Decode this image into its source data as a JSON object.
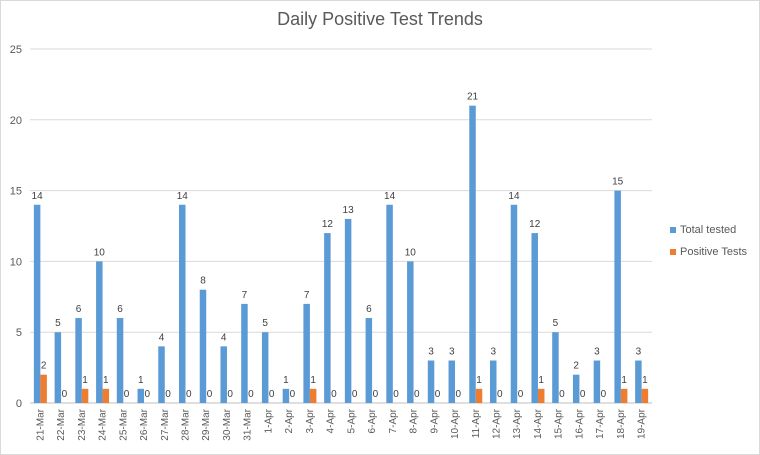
{
  "chart_data": {
    "type": "bar",
    "title": "Daily Positive Test Trends",
    "xlabel": "",
    "ylabel": "",
    "ylim": [
      0,
      25
    ],
    "yticks": [
      0,
      5,
      10,
      15,
      20,
      25
    ],
    "grid": true,
    "legend_position": "right",
    "categories": [
      "21-Mar",
      "22-Mar",
      "23-Mar",
      "24-Mar",
      "25-Mar",
      "26-Mar",
      "27-Mar",
      "28-Mar",
      "29-Mar",
      "30-Mar",
      "31-Mar",
      "1-Apr",
      "2-Apr",
      "3-Apr",
      "4-Apr",
      "5-Apr",
      "6-Apr",
      "7-Apr",
      "8-Apr",
      "9-Apr",
      "10-Apr",
      "11-Apr",
      "12-Apr",
      "13-Apr",
      "14-Apr",
      "15-Apr",
      "16-Apr",
      "17-Apr",
      "18-Apr",
      "19-Apr"
    ],
    "series": [
      {
        "name": "Total tested",
        "color": "#5b9bd5",
        "values": [
          14,
          5,
          6,
          10,
          6,
          1,
          4,
          14,
          8,
          4,
          7,
          5,
          1,
          7,
          12,
          13,
          6,
          14,
          10,
          3,
          3,
          21,
          3,
          14,
          12,
          5,
          2,
          3,
          15,
          3
        ]
      },
      {
        "name": "Positive Tests",
        "color": "#ed7d31",
        "values": [
          2,
          0,
          1,
          1,
          0,
          0,
          0,
          0,
          0,
          0,
          0,
          0,
          0,
          1,
          0,
          0,
          0,
          0,
          0,
          0,
          0,
          1,
          0,
          0,
          1,
          0,
          0,
          0,
          1,
          1
        ]
      }
    ]
  }
}
